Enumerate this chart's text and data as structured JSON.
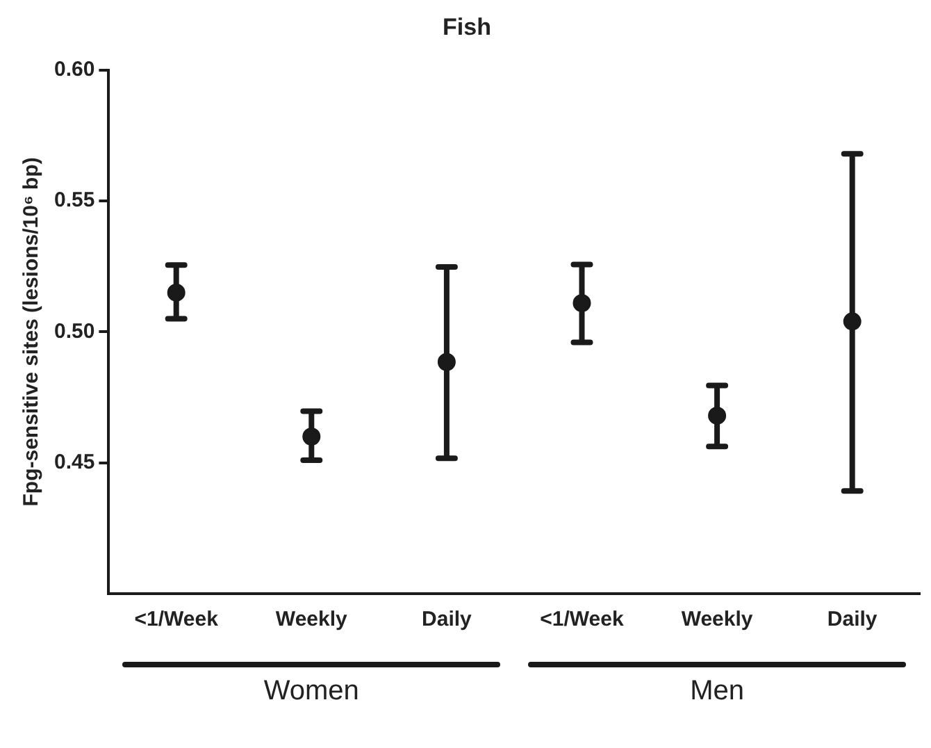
{
  "chart_data": {
    "type": "scatter",
    "title": "Fish",
    "ylabel": "Fpg-sensitive sites (lesions/10⁶ bp)",
    "categories": [
      "<1/Week",
      "Weekly",
      "Daily",
      "<1/Week",
      "Weekly",
      "Daily"
    ],
    "series": [
      {
        "color": "#1a1a1a",
        "values": [
          0.515,
          0.46,
          0.4885,
          0.511,
          0.468,
          0.504
        ],
        "errors": [
          [
            0.505,
            0.5255
          ],
          [
            0.451,
            0.4697
          ],
          [
            0.4517,
            0.5248
          ],
          [
            0.496,
            0.5257
          ],
          [
            0.4562,
            0.4795
          ],
          [
            0.4392,
            0.568
          ]
        ]
      }
    ],
    "ylim": [
      0.4,
      0.6
    ],
    "yticks": [
      0.45,
      {
        "value": 0.5,
        "label": "0.50"
      },
      0.55,
      {
        "value": 0.6,
        "label": "0.60"
      }
    ],
    "annotations": [
      "Women",
      "Men"
    ],
    "marker": "circle",
    "grid": false,
    "legend": false
  }
}
